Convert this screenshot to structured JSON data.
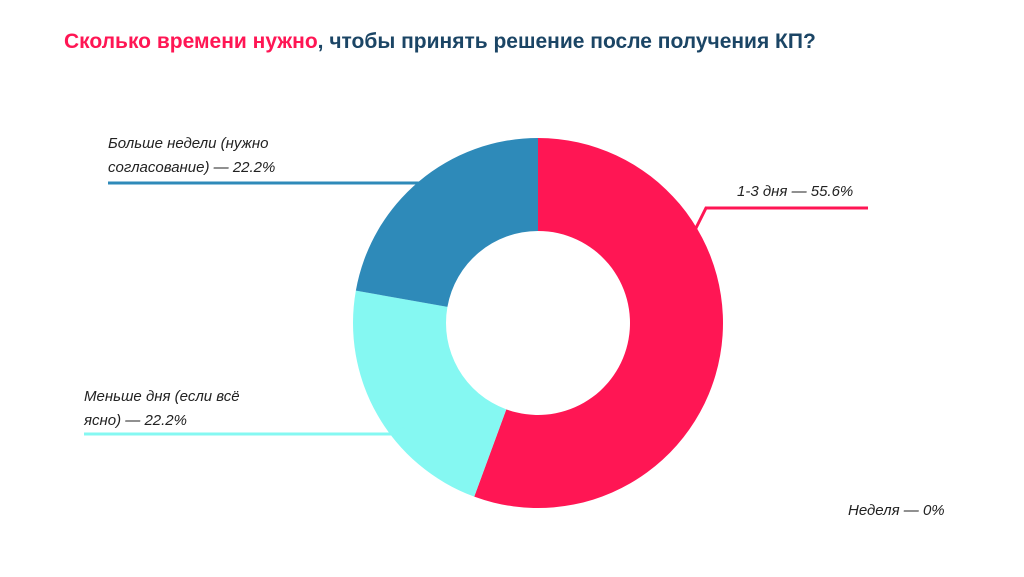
{
  "title": {
    "highlight": "Сколько времени нужно",
    "rest": ", чтобы принять решение после получения КП?"
  },
  "chart_data": {
    "type": "pie",
    "variant": "donut",
    "categories": [
      "1-3 дня",
      "Меньше дня (если всё ясно)",
      "Больше недели (нужно согласование)",
      "Неделя"
    ],
    "values": [
      55.6,
      22.2,
      22.2,
      0
    ],
    "colors": [
      "#ff1654",
      "#85f8f2",
      "#2e8ab9",
      "#cccccc"
    ],
    "labels": [
      [
        "1-3 дня — 55.6%"
      ],
      [
        "Меньше дня (если всё",
        "ясно) — 22.2%"
      ],
      [
        "Больше недели (нужно",
        "согласование) — 22.2%"
      ],
      [
        "Неделя — 0%"
      ]
    ],
    "legend": "none"
  }
}
